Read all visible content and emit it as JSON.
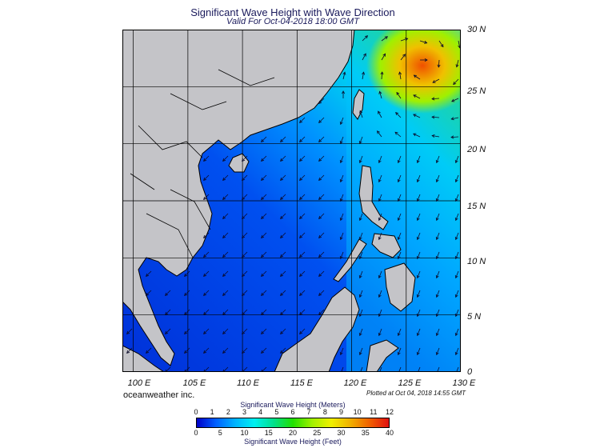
{
  "title": "Significant Wave Height with Wave Direction",
  "subtitle": "Valid For Oct-04-2018 18:00 GMT",
  "credit": "oceanweather inc.",
  "plotted": "Plotted at Oct 04, 2018 14:55 GMT",
  "map": {
    "lon_labels": [
      "100 E",
      "105 E",
      "110 E",
      "115 E",
      "120 E",
      "125 E",
      "130 E"
    ],
    "lat_labels": [
      "30 N",
      "25 N",
      "20 N",
      "15 N",
      "10 N",
      "5 N",
      "0"
    ],
    "lon_range": [
      99,
      130
    ],
    "lat_range": [
      0,
      30
    ],
    "grid": true,
    "colors": {
      "land": "#c4c4c8",
      "grid": "#000000",
      "arrow": "#0a0a2a"
    }
  },
  "colorbar": {
    "title_meters": "Significant Wave Height (Meters)",
    "title_feet": "Significant Wave Height (Feet)",
    "meters_ticks": [
      "0",
      "1",
      "2",
      "3",
      "4",
      "5",
      "6",
      "7",
      "8",
      "9",
      "10",
      "11",
      "12"
    ],
    "feet_ticks": [
      "0",
      "5",
      "10",
      "15",
      "20",
      "25",
      "30",
      "35",
      "40"
    ],
    "colors": [
      "#0000c8",
      "#0060ff",
      "#00b4ff",
      "#00f0f0",
      "#00e08c",
      "#20e000",
      "#a0f000",
      "#f0f000",
      "#f0b000",
      "#f06000",
      "#e01010"
    ]
  }
}
